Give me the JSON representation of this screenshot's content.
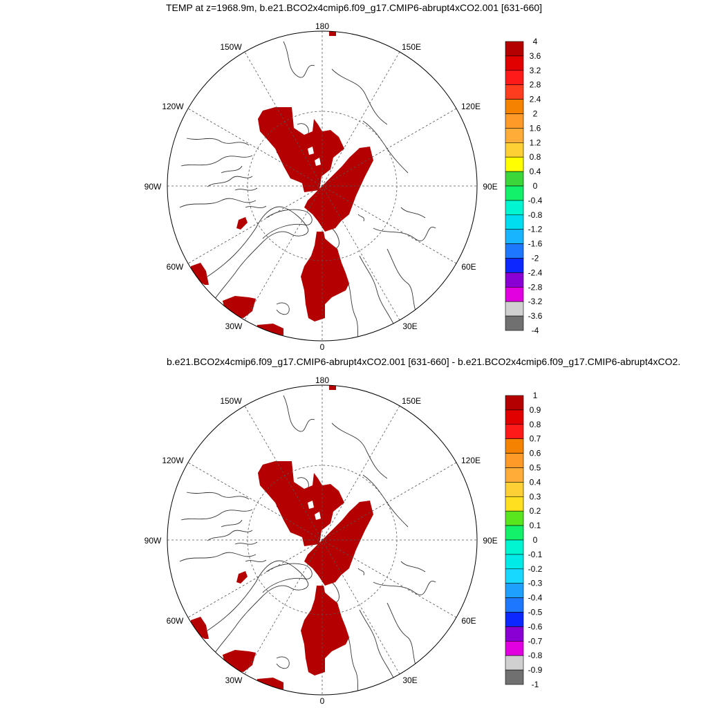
{
  "panels": [
    {
      "id": "top",
      "title": "TEMP at z=1968.9m, b.e21.BCO2x4cmip6.f09_g17.CMIP6-abrupt4xCO2.001 [631-660]",
      "longitude_labels": {
        "lon_180": "180",
        "lon_150e": "150E",
        "lon_120e": "120E",
        "lon_90e": "90E",
        "lon_60e": "60E",
        "lon_30e": "30E",
        "lon_0": "0",
        "lon_30w": "30W",
        "lon_60w": "60W",
        "lon_90w": "90W",
        "lon_120w": "120W",
        "lon_150w": "150W"
      },
      "colorbar": {
        "labels": [
          "4",
          "3.6",
          "3.2",
          "2.8",
          "2.4",
          "2",
          "1.6",
          "1.2",
          "0.8",
          "0.4",
          "0",
          "-0.4",
          "-0.8",
          "-1.2",
          "-1.6",
          "-2",
          "-2.4",
          "-2.8",
          "-3.2",
          "-3.6",
          "-4"
        ],
        "colors": [
          "#b40000",
          "#e00000",
          "#ff1a1a",
          "#ff3c1e",
          "#f58200",
          "#ff9a28",
          "#ffad38",
          "#ffd035",
          "#ffff00",
          "#3ad63a",
          "#13f06a",
          "#00f5d0",
          "#00dcf0",
          "#19b4ff",
          "#1e78ff",
          "#0a28ff",
          "#8a00d4",
          "#e000e0",
          "#d0d0d0",
          "#707070"
        ]
      }
    },
    {
      "id": "bottom",
      "title": "b.e21.BCO2x4cmip6.f09_g17.CMIP6-abrupt4xCO2.001 [631-660] - b.e21.BCO2x4cmip6.f09_g17.CMIP6-abrupt4xCO2.",
      "longitude_labels": {
        "lon_180": "180",
        "lon_150e": "150E",
        "lon_120e": "120E",
        "lon_90e": "90E",
        "lon_60e": "60E",
        "lon_30e": "30E",
        "lon_0": "0",
        "lon_30w": "30W",
        "lon_60w": "60W",
        "lon_90w": "90W",
        "lon_120w": "120W",
        "lon_150w": "150W"
      },
      "colorbar": {
        "labels": [
          "1",
          "0.9",
          "0.8",
          "0.7",
          "0.6",
          "0.5",
          "0.4",
          "0.3",
          "0.2",
          "0.1",
          "0",
          "-0.1",
          "-0.2",
          "-0.3",
          "-0.4",
          "-0.5",
          "-0.6",
          "-0.7",
          "-0.8",
          "-0.9",
          "-1"
        ],
        "colors": [
          "#b40000",
          "#e00000",
          "#ff1a1a",
          "#f58200",
          "#ff9a28",
          "#ffad38",
          "#ffd035",
          "#ffe020",
          "#5ae61e",
          "#13f06a",
          "#00f5d0",
          "#00eae8",
          "#19d8ff",
          "#1ea0ff",
          "#1e78ff",
          "#0a28ff",
          "#8a00d4",
          "#e000e0",
          "#d0d0d0",
          "#707070"
        ]
      }
    }
  ]
}
